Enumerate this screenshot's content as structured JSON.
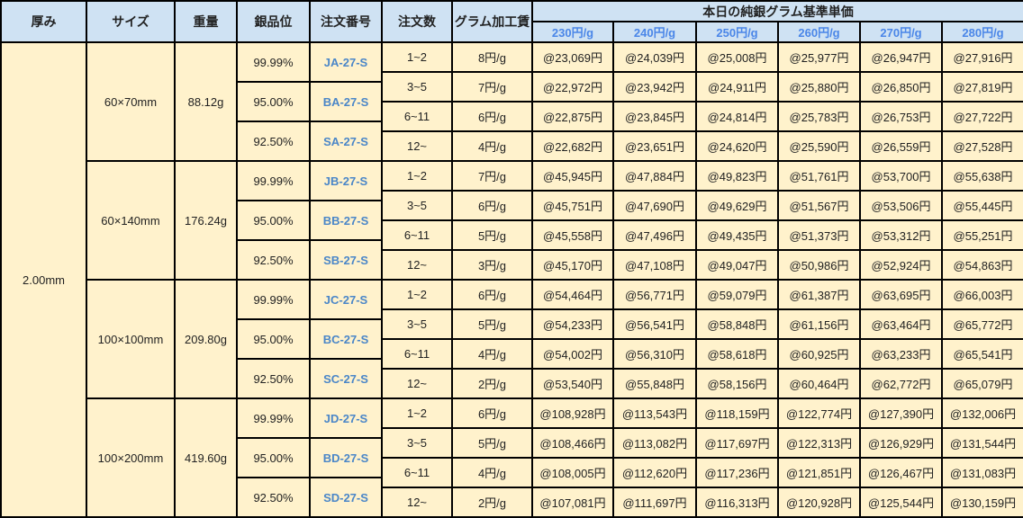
{
  "colors": {
    "header_bg": "#cfe2f3",
    "body_bg": "#fff2cc",
    "accent": "#4a86e8"
  },
  "headers": {
    "thickness": "厚み",
    "size": "サイズ",
    "weight": "重量",
    "purity": "銀品位",
    "order_no": "注文番号",
    "qty": "注文数",
    "fee": "グラム加工賃",
    "price_group": "本日の純銀グラム基準単価"
  },
  "price_columns": [
    "230円/g",
    "240円/g",
    "250円/g",
    "260円/g",
    "270円/g",
    "280円/g"
  ],
  "thickness": "2.00mm",
  "groups": [
    {
      "size": "60×70mm",
      "weight": "88.12g",
      "purities": [
        {
          "purity": "99.99%",
          "order": "JA-27-S"
        },
        {
          "purity": "95.00%",
          "order": "BA-27-S"
        },
        {
          "purity": "92.50%",
          "order": "SA-27-S"
        }
      ],
      "rows": [
        {
          "qty": "1~2",
          "fee": "8円/g",
          "prices": [
            "@23,069円",
            "@24,039円",
            "@25,008円",
            "@25,977円",
            "@26,947円",
            "@27,916円"
          ]
        },
        {
          "qty": "3~5",
          "fee": "7円/g",
          "prices": [
            "@22,972円",
            "@23,942円",
            "@24,911円",
            "@25,880円",
            "@26,850円",
            "@27,819円"
          ]
        },
        {
          "qty": "6~11",
          "fee": "6円/g",
          "prices": [
            "@22,875円",
            "@23,845円",
            "@24,814円",
            "@25,783円",
            "@26,753円",
            "@27,722円"
          ]
        },
        {
          "qty": "12~",
          "fee": "4円/g",
          "prices": [
            "@22,682円",
            "@23,651円",
            "@24,620円",
            "@25,590円",
            "@26,559円",
            "@27,528円"
          ]
        }
      ]
    },
    {
      "size": "60×140mm",
      "weight": "176.24g",
      "purities": [
        {
          "purity": "99.99%",
          "order": "JB-27-S"
        },
        {
          "purity": "95.00%",
          "order": "BB-27-S"
        },
        {
          "purity": "92.50%",
          "order": "SB-27-S"
        }
      ],
      "rows": [
        {
          "qty": "1~2",
          "fee": "7円/g",
          "prices": [
            "@45,945円",
            "@47,884円",
            "@49,823円",
            "@51,761円",
            "@53,700円",
            "@55,638円"
          ]
        },
        {
          "qty": "3~5",
          "fee": "6円/g",
          "prices": [
            "@45,751円",
            "@47,690円",
            "@49,629円",
            "@51,567円",
            "@53,506円",
            "@55,445円"
          ]
        },
        {
          "qty": "6~11",
          "fee": "5円/g",
          "prices": [
            "@45,558円",
            "@47,496円",
            "@49,435円",
            "@51,373円",
            "@53,312円",
            "@55,251円"
          ]
        },
        {
          "qty": "12~",
          "fee": "3円/g",
          "prices": [
            "@45,170円",
            "@47,108円",
            "@49,047円",
            "@50,986円",
            "@52,924円",
            "@54,863円"
          ]
        }
      ]
    },
    {
      "size": "100×100mm",
      "weight": "209.80g",
      "purities": [
        {
          "purity": "99.99%",
          "order": "JC-27-S"
        },
        {
          "purity": "95.00%",
          "order": "BC-27-S"
        },
        {
          "purity": "92.50%",
          "order": "SC-27-S"
        }
      ],
      "rows": [
        {
          "qty": "1~2",
          "fee": "6円/g",
          "prices": [
            "@54,464円",
            "@56,771円",
            "@59,079円",
            "@61,387円",
            "@63,695円",
            "@66,003円"
          ]
        },
        {
          "qty": "3~5",
          "fee": "5円/g",
          "prices": [
            "@54,233円",
            "@56,541円",
            "@58,848円",
            "@61,156円",
            "@63,464円",
            "@65,772円"
          ]
        },
        {
          "qty": "6~11",
          "fee": "4円/g",
          "prices": [
            "@54,002円",
            "@56,310円",
            "@58,618円",
            "@60,925円",
            "@63,233円",
            "@65,541円"
          ]
        },
        {
          "qty": "12~",
          "fee": "2円/g",
          "prices": [
            "@53,540円",
            "@55,848円",
            "@58,156円",
            "@60,464円",
            "@62,772円",
            "@65,079円"
          ]
        }
      ]
    },
    {
      "size": "100×200mm",
      "weight": "419.60g",
      "purities": [
        {
          "purity": "99.99%",
          "order": "JD-27-S"
        },
        {
          "purity": "95.00%",
          "order": "BD-27-S"
        },
        {
          "purity": "92.50%",
          "order": "SD-27-S"
        }
      ],
      "rows": [
        {
          "qty": "1~2",
          "fee": "6円/g",
          "prices": [
            "@108,928円",
            "@113,543円",
            "@118,159円",
            "@122,774円",
            "@127,390円",
            "@132,006円"
          ]
        },
        {
          "qty": "3~5",
          "fee": "5円/g",
          "prices": [
            "@108,466円",
            "@113,082円",
            "@117,697円",
            "@122,313円",
            "@126,929円",
            "@131,544円"
          ]
        },
        {
          "qty": "6~11",
          "fee": "4円/g",
          "prices": [
            "@108,005円",
            "@112,620円",
            "@117,236円",
            "@121,851円",
            "@126,467円",
            "@131,083円"
          ]
        },
        {
          "qty": "12~",
          "fee": "2円/g",
          "prices": [
            "@107,081円",
            "@111,697円",
            "@116,313円",
            "@120,928円",
            "@125,544円",
            "@130,159円"
          ]
        }
      ]
    }
  ]
}
